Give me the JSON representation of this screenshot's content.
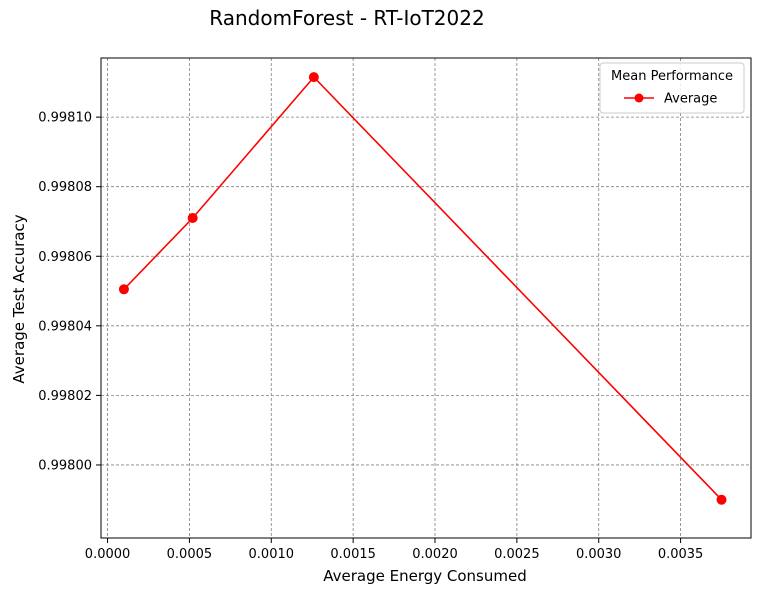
{
  "chart_data": {
    "type": "line",
    "title": "RandomForest - RT-IoT2022",
    "xlabel": "Average Energy Consumed",
    "ylabel": "Average Test Accuracy",
    "xlim": [
      -4e-05,
      0.00393
    ],
    "ylim": [
      0.997979,
      0.998117
    ],
    "xticks": [
      0.0,
      0.0005,
      0.001,
      0.0015,
      0.002,
      0.0025,
      0.003,
      0.0035
    ],
    "xtick_labels": [
      "0.0000",
      "0.0005",
      "0.0010",
      "0.0015",
      "0.0020",
      "0.0025",
      "0.0030",
      "0.0035"
    ],
    "yticks": [
      0.998,
      0.99802,
      0.99804,
      0.99806,
      0.99808,
      0.9981
    ],
    "ytick_labels": [
      "0.99800",
      "0.99802",
      "0.99804",
      "0.99806",
      "0.99808",
      "0.99810"
    ],
    "grid": true,
    "legend": {
      "title": "Mean Performance",
      "position": "upper right"
    },
    "series": [
      {
        "name": "Average",
        "color": "#ff0000",
        "marker": "circle",
        "x": [
          0.0001,
          0.00052,
          0.00126,
          0.00375
        ],
        "y": [
          0.9980505,
          0.998071,
          0.9981115,
          0.99799
        ]
      }
    ]
  }
}
